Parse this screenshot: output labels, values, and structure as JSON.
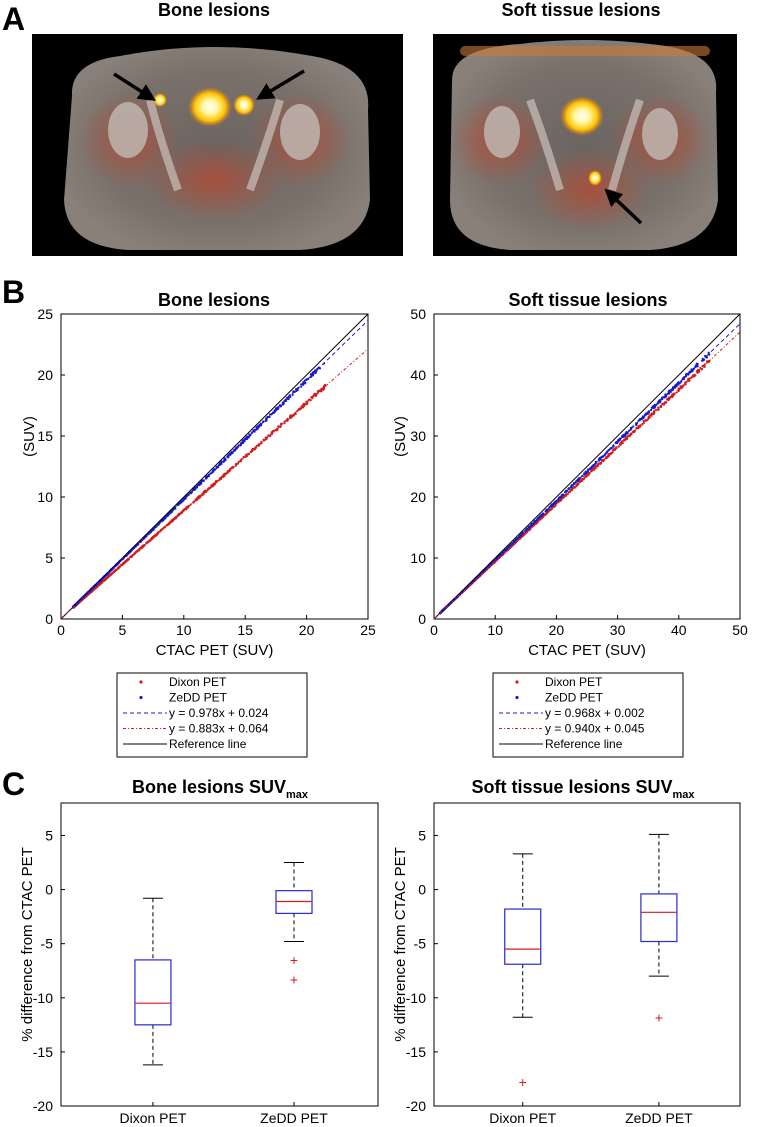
{
  "panels": {
    "a": {
      "label": "A",
      "images": [
        {
          "title": "Bone lesions"
        },
        {
          "title": "Soft tissue lesions"
        }
      ]
    },
    "b": {
      "label": "B"
    },
    "c": {
      "label": "C"
    }
  },
  "colors": {
    "dixon": "#d21e1e",
    "zedd": "#1a1acc",
    "reference": "#000000",
    "box": "#2a2ad0",
    "median": "#d21e1e",
    "outlier": "#d21e1e"
  },
  "chart_data": [
    {
      "id": "scatter-bone",
      "type": "scatter",
      "title": "Bone lesions",
      "xlabel": "CTAC PET (SUV)",
      "ylabel": "(SUV)",
      "xlim": [
        0,
        25
      ],
      "ylim": [
        0,
        25
      ],
      "xticks": [
        0,
        5,
        10,
        15,
        20,
        25
      ],
      "yticks": [
        0,
        5,
        10,
        15,
        20,
        25
      ],
      "x_range": [
        1,
        21.5
      ],
      "series": [
        {
          "name": "Dixon PET",
          "slope": 0.883,
          "intercept": 0.064
        },
        {
          "name": "ZeDD PET",
          "slope": 0.978,
          "intercept": 0.024
        }
      ],
      "fit_lines": [
        {
          "label": "y = 0.978x + 0.024",
          "slope": 0.978,
          "intercept": 0.024,
          "series": "ZeDD PET"
        },
        {
          "label": "y = 0.883x + 0.064",
          "slope": 0.883,
          "intercept": 0.064,
          "series": "Dixon PET"
        }
      ],
      "reference_label": "Reference line",
      "legend": [
        "Dixon PET",
        "ZeDD PET",
        "y = 0.978x + 0.024",
        "y = 0.883x + 0.064",
        "Reference line"
      ]
    },
    {
      "id": "scatter-soft",
      "type": "scatter",
      "title": "Soft tissue lesions",
      "xlabel": "CTAC PET (SUV)",
      "ylabel": "(SUV)",
      "xlim": [
        0,
        50
      ],
      "ylim": [
        0,
        50
      ],
      "xticks": [
        0,
        10,
        20,
        30,
        40,
        50
      ],
      "yticks": [
        0,
        10,
        20,
        30,
        40,
        50
      ],
      "x_range": [
        1,
        45
      ],
      "series": [
        {
          "name": "Dixon PET",
          "slope": 0.94,
          "intercept": 0.045
        },
        {
          "name": "ZeDD PET",
          "slope": 0.968,
          "intercept": 0.002
        }
      ],
      "fit_lines": [
        {
          "label": "y = 0.968x + 0.002",
          "slope": 0.968,
          "intercept": 0.002,
          "series": "ZeDD PET"
        },
        {
          "label": "y = 0.940x + 0.045",
          "slope": 0.94,
          "intercept": 0.045,
          "series": "Dixon PET"
        }
      ],
      "reference_label": "Reference line",
      "legend": [
        "Dixon PET",
        "ZeDD PET",
        "y = 0.968x + 0.002",
        "y = 0.940x + 0.045",
        "Reference line"
      ]
    },
    {
      "id": "box-bone",
      "type": "box",
      "title": "Bone lesions SUV",
      "title_sub": "max",
      "ylabel": "% difference from CTAC PET",
      "ylim": [
        -20,
        8
      ],
      "yticks": [
        5,
        0,
        -5,
        -10,
        -15,
        -20
      ],
      "categories": [
        "Dixon PET",
        "ZeDD PET"
      ],
      "boxes": [
        {
          "category": "Dixon PET",
          "whisker_high": -0.8,
          "q3": -6.5,
          "median": -10.5,
          "q1": -12.5,
          "whisker_low": -16.2,
          "outliers": []
        },
        {
          "category": "ZeDD PET",
          "whisker_high": 2.5,
          "q3": -0.1,
          "median": -1.1,
          "q1": -2.2,
          "whisker_low": -4.8,
          "outliers": [
            -6.5,
            -8.3
          ]
        }
      ]
    },
    {
      "id": "box-soft",
      "type": "box",
      "title": "Soft tissue lesions SUV",
      "title_sub": "max",
      "ylabel": "% difference from CTAC PET",
      "ylim": [
        -20,
        8
      ],
      "yticks": [
        5,
        0,
        -5,
        -10,
        -15,
        -20
      ],
      "categories": [
        "Dixon PET",
        "ZeDD PET"
      ],
      "boxes": [
        {
          "category": "Dixon PET",
          "whisker_high": 3.3,
          "q3": -1.8,
          "median": -5.5,
          "q1": -6.9,
          "whisker_low": -11.8,
          "outliers": [
            -17.8
          ]
        },
        {
          "category": "ZeDD PET",
          "whisker_high": 5.1,
          "q3": -0.4,
          "median": -2.1,
          "q1": -4.8,
          "whisker_low": -8.0,
          "outliers": [
            -11.8
          ]
        }
      ]
    }
  ]
}
